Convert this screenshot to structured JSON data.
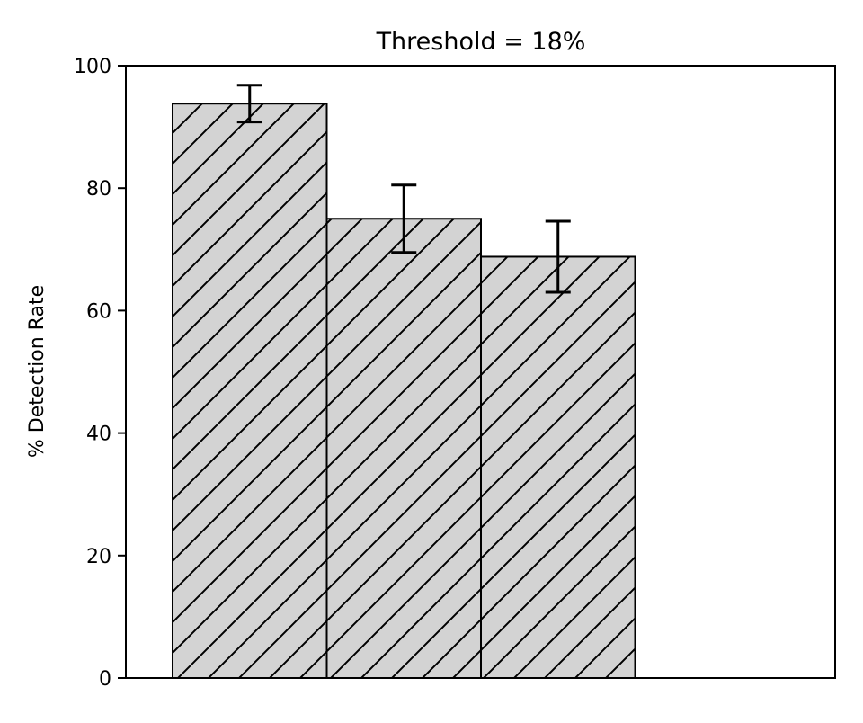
{
  "chart_data": {
    "type": "bar",
    "title": "Threshold = 18%",
    "xlabel": "",
    "ylabel": "% Detection Rate",
    "ylim": [
      0,
      100
    ],
    "yticks": [
      0,
      20,
      40,
      60,
      80,
      100
    ],
    "xticks": [],
    "grid": false,
    "legend": "none",
    "bar_fill_color": "#d3d3d3",
    "bar_edge_color": "#000000",
    "bar_hatch": "diagonal",
    "series": [
      {
        "values": [
          93.8,
          75.0,
          68.8
        ],
        "errors": [
          3.0,
          5.5,
          5.8
        ]
      }
    ]
  }
}
